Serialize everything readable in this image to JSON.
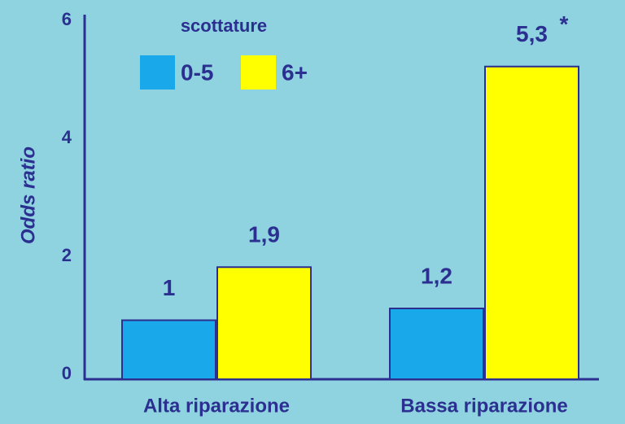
{
  "chart_data": {
    "type": "bar",
    "y_label": "Odds ratio",
    "legend_title": "scottature",
    "categories": [
      "Alta riparazione",
      "Bassa riparazione"
    ],
    "series": [
      {
        "name": "0-5",
        "color": "#19a9ea",
        "values": [
          1,
          1.2
        ],
        "value_labels": [
          "1",
          "1,2"
        ]
      },
      {
        "name": "6+",
        "color": "#ffff00",
        "values": [
          1.9,
          5.3
        ],
        "value_labels": [
          "1,9",
          "5,3"
        ]
      }
    ],
    "annotation": "*",
    "ylim": [
      0,
      6
    ],
    "yticks": [
      0,
      2,
      4,
      6
    ],
    "grid": false
  }
}
